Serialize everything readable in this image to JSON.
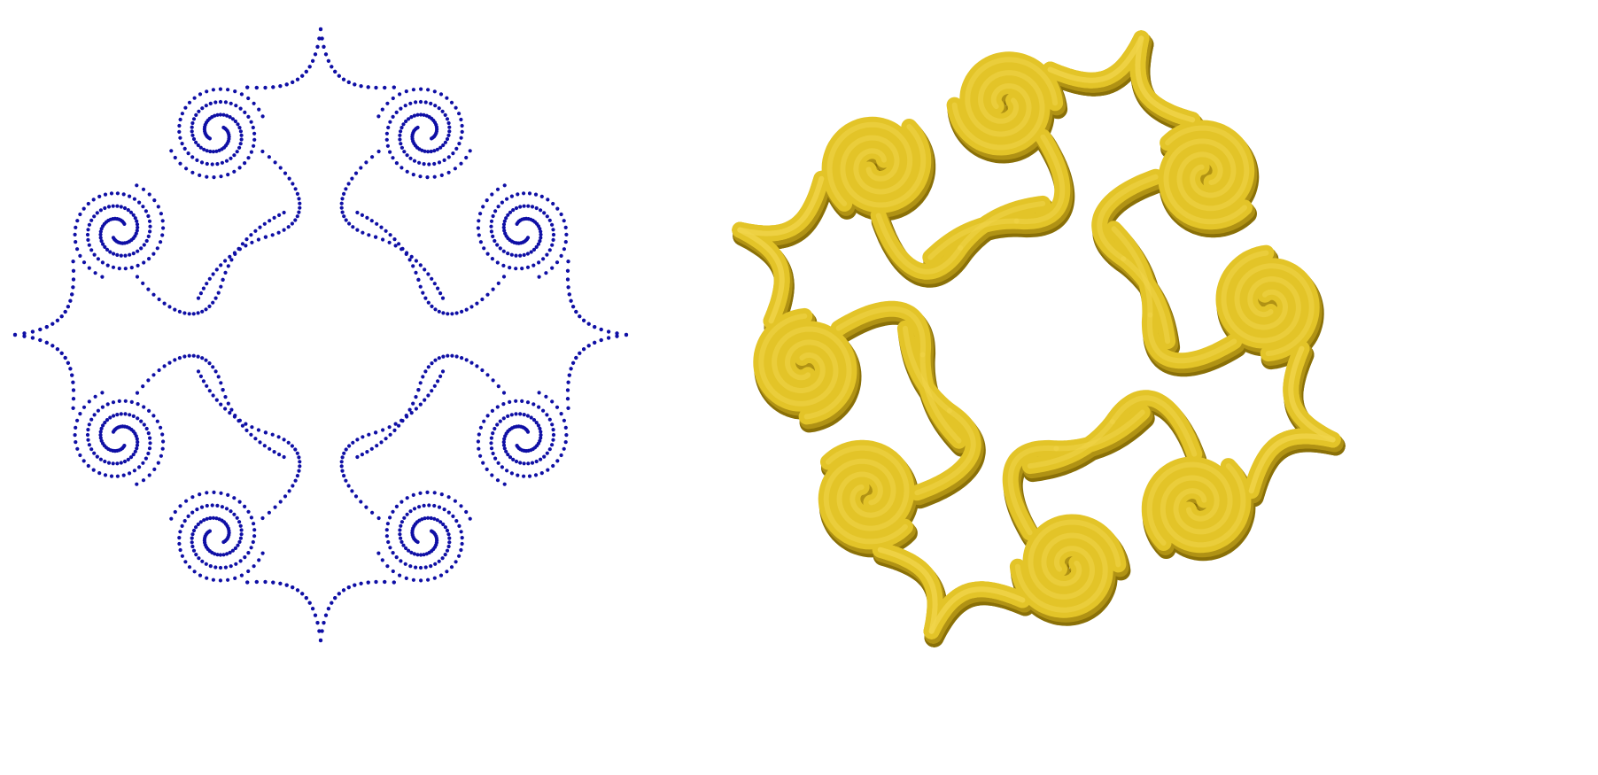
{
  "figure": {
    "panels": [
      {
        "name": "dotted-point-sampled-ornament",
        "style": "dots",
        "color": "#0f0fa5"
      },
      {
        "name": "extruded-3d-ornament",
        "style": "solid-extrusion",
        "top_color": "#e3c428",
        "side_color": "#b09214",
        "edge_color": "#8a7008"
      }
    ],
    "ornament": {
      "motif": "double-scroll-with-cusp",
      "motif_count": 4,
      "spirals_per_motif": 4,
      "symmetry": "4-fold"
    }
  }
}
